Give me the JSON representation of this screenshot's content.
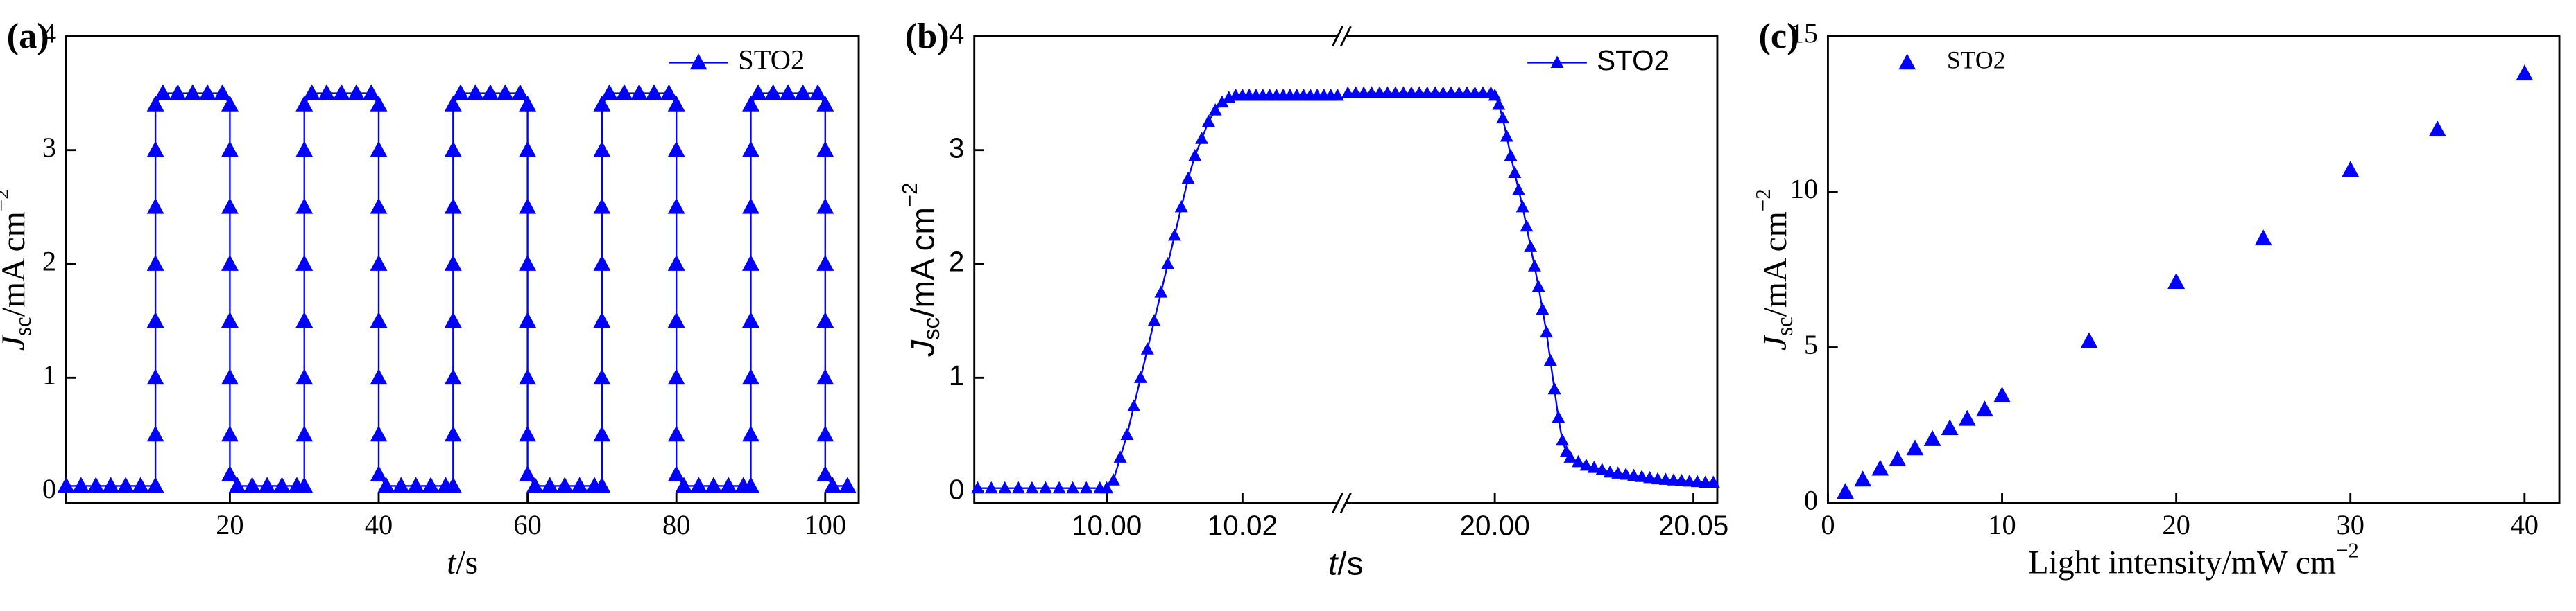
{
  "chart_data": [
    {
      "type": "line",
      "panel_label": "(a)",
      "legend": "upper right",
      "xlabel": {
        "symbol": "t",
        "text": "/s"
      },
      "ylabel": {
        "symbol": "J",
        "subscript": "sc",
        "text": "/mA cm",
        "superscript": "−2"
      },
      "xlim": [
        -2,
        104.5
      ],
      "xticks": [
        20,
        40,
        60,
        80,
        100
      ],
      "ylim": [
        -0.1,
        4
      ],
      "yticks": [
        0,
        1,
        2,
        3,
        4
      ],
      "x": [
        -2,
        0,
        2,
        4,
        6,
        8,
        10,
        10,
        10,
        10,
        10,
        10,
        10,
        10,
        11,
        13,
        15,
        17,
        19,
        20,
        20,
        20,
        20,
        20,
        20,
        20,
        20,
        21,
        23,
        25,
        27,
        29,
        30,
        30,
        30,
        30,
        30,
        30,
        30,
        30,
        31,
        33,
        35,
        37,
        39,
        40,
        40,
        40,
        40,
        40,
        40,
        40,
        40,
        41,
        43,
        45,
        47,
        49,
        50,
        50,
        50,
        50,
        50,
        50,
        50,
        50,
        51,
        53,
        55,
        57,
        59,
        60,
        60,
        60,
        60,
        60,
        60,
        60,
        60,
        61,
        63,
        65,
        67,
        69,
        70,
        70,
        70,
        70,
        70,
        70,
        70,
        70,
        71,
        73,
        75,
        77,
        79,
        80,
        80,
        80,
        80,
        80,
        80,
        80,
        80,
        81,
        83,
        85,
        87,
        89,
        90,
        90,
        90,
        90,
        90,
        90,
        90,
        90,
        91,
        93,
        95,
        97,
        99,
        100,
        100,
        100,
        100,
        100,
        100,
        100,
        100,
        101,
        103
      ],
      "series": [
        {
          "name": "STO2",
          "color": "#0000ff",
          "values": [
            0.05,
            0.05,
            0.05,
            0.05,
            0.05,
            0.05,
            0.05,
            0.5,
            1,
            1.5,
            2,
            2.5,
            3,
            3.4,
            3.5,
            3.5,
            3.5,
            3.5,
            3.5,
            3.4,
            3,
            2.5,
            2,
            1.5,
            1,
            0.5,
            0.15,
            0.05,
            0.05,
            0.05,
            0.05,
            0.05,
            0.05,
            0.5,
            1,
            1.5,
            2,
            2.5,
            3,
            3.4,
            3.5,
            3.5,
            3.5,
            3.5,
            3.5,
            3.4,
            3,
            2.5,
            2,
            1.5,
            1,
            0.5,
            0.15,
            0.05,
            0.05,
            0.05,
            0.05,
            0.05,
            0.05,
            0.5,
            1,
            1.5,
            2,
            2.5,
            3,
            3.4,
            3.5,
            3.5,
            3.5,
            3.5,
            3.5,
            3.4,
            3,
            2.5,
            2,
            1.5,
            1,
            0.5,
            0.15,
            0.05,
            0.05,
            0.05,
            0.05,
            0.05,
            0.05,
            0.5,
            1,
            1.5,
            2,
            2.5,
            3,
            3.4,
            3.5,
            3.5,
            3.5,
            3.5,
            3.5,
            3.4,
            3,
            2.5,
            2,
            1.5,
            1,
            0.5,
            0.15,
            0.05,
            0.05,
            0.05,
            0.05,
            0.05,
            0.05,
            0.5,
            1,
            1.5,
            2,
            2.5,
            3,
            3.4,
            3.5,
            3.5,
            3.5,
            3.5,
            3.5,
            3.4,
            3,
            2.5,
            2,
            1.5,
            1,
            0.5,
            0.15,
            0.05,
            0.05
          ]
        }
      ]
    },
    {
      "type": "line",
      "panel_label": "(b)",
      "legend": "upper right",
      "xlabel": {
        "symbol": "t",
        "text": "/s"
      },
      "ylabel": {
        "symbol": "J",
        "subscript": "sc",
        "text": "/mA cm",
        "superscript": "−2"
      },
      "x_segments": [
        {
          "xlim": [
            9.9805,
            10.034
          ],
          "xticks": [
            {
              "value": 10,
              "label": "10.00"
            },
            {
              "value": 10.02,
              "label": "10.02"
            }
          ]
        },
        {
          "xlim": [
            19.9625,
            20.056
          ],
          "xticks": [
            {
              "value": 20,
              "label": "20.00"
            },
            {
              "value": 20.05,
              "label": "20.05"
            }
          ]
        }
      ],
      "ylim": [
        -0.1,
        4
      ],
      "yticks": [
        0,
        1,
        2,
        3,
        4
      ],
      "x": [
        9.981,
        9.983,
        9.985,
        9.987,
        9.989,
        9.991,
        9.993,
        9.995,
        9.997,
        9.999,
        10,
        10.001,
        10.002,
        10.003,
        10.004,
        10.005,
        10.006,
        10.007,
        10.008,
        10.009,
        10.01,
        10.011,
        10.012,
        10.013,
        10.014,
        10.015,
        10.016,
        10.017,
        10.018,
        10.019,
        10.02,
        10.021,
        10.022,
        10.023,
        10.024,
        10.025,
        10.026,
        10.027,
        10.028,
        10.029,
        10.03,
        10.031,
        10.032,
        10.033,
        10.034,
        null,
        19.963,
        19.965,
        19.967,
        19.969,
        19.971,
        19.973,
        19.975,
        19.977,
        19.979,
        19.981,
        19.983,
        19.985,
        19.987,
        19.989,
        19.991,
        19.993,
        19.995,
        19.997,
        19.999,
        20,
        20.001,
        20.002,
        20.003,
        20.004,
        20.005,
        20.006,
        20.007,
        20.008,
        20.009,
        20.01,
        20.011,
        20.012,
        20.013,
        20.014,
        20.015,
        20.016,
        20.017,
        20.018,
        20.019,
        20.021,
        20.023,
        20.025,
        20.027,
        20.029,
        20.031,
        20.033,
        20.035,
        20.037,
        20.039,
        20.041,
        20.043,
        20.045,
        20.047,
        20.049,
        20.051,
        20.053,
        20.055
      ],
      "series": [
        {
          "name": "STO2",
          "color": "#0000ff",
          "values": [
            0.03,
            0.03,
            0.03,
            0.03,
            0.03,
            0.03,
            0.03,
            0.03,
            0.03,
            0.03,
            0.03,
            0.1,
            0.3,
            0.5,
            0.75,
            1,
            1.25,
            1.5,
            1.75,
            2,
            2.25,
            2.5,
            2.75,
            2.95,
            3.1,
            3.25,
            3.35,
            3.42,
            3.46,
            3.48,
            3.48,
            3.48,
            3.48,
            3.48,
            3.48,
            3.48,
            3.48,
            3.48,
            3.48,
            3.48,
            3.48,
            3.48,
            3.48,
            3.48,
            3.48,
            null,
            3.5,
            3.5,
            3.5,
            3.5,
            3.5,
            3.5,
            3.5,
            3.5,
            3.5,
            3.5,
            3.5,
            3.5,
            3.5,
            3.5,
            3.5,
            3.5,
            3.5,
            3.5,
            3.5,
            3.48,
            3.4,
            3.28,
            3.12,
            2.95,
            2.8,
            2.65,
            2.5,
            2.33,
            2.15,
            1.98,
            1.8,
            1.6,
            1.4,
            1.15,
            0.9,
            0.65,
            0.45,
            0.35,
            0.3,
            0.26,
            0.23,
            0.21,
            0.19,
            0.17,
            0.16,
            0.15,
            0.14,
            0.13,
            0.12,
            0.11,
            0.105,
            0.1,
            0.095,
            0.09,
            0.085,
            0.08,
            0.08
          ]
        }
      ]
    },
    {
      "type": "scatter",
      "panel_label": "(c)",
      "legend": "upper left",
      "xlabel": {
        "text": "Light intensity/mW cm",
        "superscript": "−2"
      },
      "ylabel": {
        "symbol": "J",
        "subscript": "sc",
        "text": "/mA cm",
        "superscript": "−2"
      },
      "xlim": [
        0,
        42
      ],
      "xticks": [
        0,
        10,
        20,
        30,
        40
      ],
      "ylim": [
        0,
        15
      ],
      "yticks": [
        0,
        5,
        10,
        15
      ],
      "x": [
        1,
        2,
        3,
        4,
        5,
        6,
        7,
        8,
        9,
        10,
        15,
        20,
        25,
        30,
        35,
        40
      ],
      "series": [
        {
          "name": "STO2",
          "color": "#0000ff",
          "values": [
            0.35,
            0.75,
            1.1,
            1.4,
            1.75,
            2.05,
            2.4,
            2.7,
            3,
            3.45,
            5.2,
            7.1,
            8.5,
            10.7,
            12,
            13.8
          ]
        }
      ]
    }
  ]
}
